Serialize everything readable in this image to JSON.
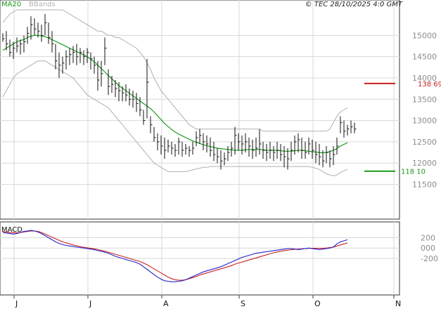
{
  "chart_data": {
    "type": "ohlc",
    "legend": {
      "ma_label": "MA20",
      "bb_label": "BBands",
      "ma_color": "#1a9a1a",
      "bb_color": "#b0b0b0"
    },
    "copyright": "© TEC 28/10/2025 4:0 GMT",
    "price_axis": {
      "ylim": [
        10750,
        15600
      ],
      "ticks": [
        "11500",
        "12000",
        "12500",
        "13000",
        "13500",
        "14000",
        "14500",
        "15000"
      ],
      "tick_values": [
        11500,
        12000,
        12500,
        13000,
        13500,
        14000,
        14500,
        15000
      ]
    },
    "month_labels": [
      "J",
      "J",
      "A",
      "S",
      "O",
      "N"
    ],
    "month_start_index": [
      0,
      21,
      42,
      64,
      85,
      108
    ],
    "resistance": {
      "value": 13869,
      "label": "138 69",
      "color": "#c81e1e"
    },
    "support": {
      "value": 11810,
      "label": "118 10",
      "color": "#1a9a1a"
    },
    "macd": {
      "title": "MACD",
      "ylim": [
        -850,
        450
      ],
      "ticks": [
        "200",
        "000",
        "-200"
      ],
      "tick_values": [
        200,
        0,
        -200
      ],
      "line_color": "#2222cc",
      "signal_color": "#cc2222"
    },
    "bars": [
      [
        15050,
        14850,
        14920
      ],
      [
        15100,
        14650,
        14800
      ],
      [
        14900,
        14500,
        14600
      ],
      [
        14850,
        14450,
        14700
      ],
      [
        14950,
        14600,
        14750
      ],
      [
        14900,
        14550,
        14800
      ],
      [
        15000,
        14600,
        14850
      ],
      [
        15200,
        14800,
        15050
      ],
      [
        15450,
        14900,
        15250
      ],
      [
        15400,
        15000,
        15150
      ],
      [
        15300,
        14950,
        15100
      ],
      [
        15250,
        14850,
        15000
      ],
      [
        15500,
        15000,
        15300
      ],
      [
        15300,
        14800,
        14950
      ],
      [
        15100,
        14600,
        14800
      ],
      [
        14800,
        14200,
        14400
      ],
      [
        14600,
        14000,
        14300
      ],
      [
        14500,
        14100,
        14350
      ],
      [
        14650,
        14200,
        14500
      ],
      [
        14700,
        14300,
        14550
      ],
      [
        14750,
        14350,
        14600
      ],
      [
        14800,
        14300,
        14500
      ],
      [
        14700,
        14350,
        14600
      ],
      [
        14650,
        14300,
        14500
      ],
      [
        14700,
        14350,
        14600
      ],
      [
        14600,
        14200,
        14450
      ],
      [
        14500,
        14100,
        14300
      ],
      [
        14400,
        13700,
        13950
      ],
      [
        14400,
        13800,
        14100
      ],
      [
        14950,
        14300,
        14700
      ],
      [
        14200,
        13600,
        13800
      ],
      [
        14050,
        13650,
        13850
      ],
      [
        13950,
        13550,
        13750
      ],
      [
        13900,
        13450,
        13700
      ],
      [
        13800,
        13450,
        13650
      ],
      [
        13850,
        13450,
        13600
      ],
      [
        13750,
        13350,
        13500
      ],
      [
        13700,
        13300,
        13500
      ],
      [
        13650,
        13200,
        13400
      ],
      [
        13550,
        13100,
        13250
      ],
      [
        13250,
        12900,
        13000
      ],
      [
        14450,
        13050,
        13900
      ],
      [
        13100,
        12700,
        12900
      ],
      [
        12850,
        12500,
        12600
      ],
      [
        12700,
        12300,
        12500
      ],
      [
        12650,
        12200,
        12400
      ],
      [
        12600,
        12100,
        12300
      ],
      [
        12550,
        12250,
        12400
      ],
      [
        12500,
        12200,
        12350
      ],
      [
        12450,
        12150,
        12300
      ],
      [
        12600,
        12200,
        12500
      ],
      [
        12500,
        12150,
        12300
      ],
      [
        12450,
        12200,
        12350
      ],
      [
        12400,
        12150,
        12300
      ],
      [
        12500,
        12200,
        12350
      ],
      [
        12750,
        12400,
        12600
      ],
      [
        12800,
        12450,
        12650
      ],
      [
        12700,
        12300,
        12500
      ],
      [
        12650,
        12250,
        12450
      ],
      [
        12600,
        12150,
        12300
      ],
      [
        12500,
        12050,
        12200
      ],
      [
        12350,
        12000,
        12150
      ],
      [
        12300,
        11850,
        12050
      ],
      [
        12250,
        11950,
        12100
      ],
      [
        12400,
        12050,
        12250
      ],
      [
        12500,
        12150,
        12350
      ],
      [
        12850,
        12200,
        12650
      ],
      [
        12700,
        12300,
        12500
      ],
      [
        12650,
        12200,
        12450
      ],
      [
        12700,
        12250,
        12500
      ],
      [
        12600,
        12150,
        12400
      ],
      [
        12550,
        12100,
        12300
      ],
      [
        12600,
        12150,
        12350
      ],
      [
        12800,
        12200,
        12450
      ],
      [
        12500,
        12100,
        12300
      ],
      [
        12450,
        12050,
        12250
      ],
      [
        12500,
        12100,
        12300
      ],
      [
        12400,
        12050,
        12250
      ],
      [
        12500,
        12100,
        12300
      ],
      [
        12450,
        12050,
        12200
      ],
      [
        12400,
        11900,
        12150
      ],
      [
        12350,
        11850,
        12100
      ],
      [
        12500,
        12050,
        12300
      ],
      [
        12650,
        12200,
        12500
      ],
      [
        12700,
        12250,
        12550
      ],
      [
        12600,
        12100,
        12300
      ],
      [
        12500,
        12100,
        12250
      ],
      [
        12600,
        12200,
        12450
      ],
      [
        12550,
        12100,
        12300
      ],
      [
        12500,
        12000,
        12200
      ],
      [
        12450,
        11950,
        12150
      ],
      [
        12300,
        11900,
        12050
      ],
      [
        12400,
        12000,
        12250
      ],
      [
        12300,
        11900,
        12100
      ],
      [
        12400,
        11950,
        12200
      ],
      [
        12600,
        12200,
        12400
      ],
      [
        13100,
        12700,
        12950
      ],
      [
        13000,
        12600,
        12750
      ],
      [
        12900,
        12650,
        12800
      ],
      [
        13000,
        12700,
        12850
      ],
      [
        12950,
        12700,
        12800
      ]
    ],
    "ma20": [
      14650,
      14700,
      14750,
      14800,
      14850,
      14880,
      14900,
      14950,
      14980,
      15000,
      15000,
      14990,
      14970,
      14940,
      14900,
      14860,
      14820,
      14780,
      14740,
      14700,
      14660,
      14620,
      14580,
      14540,
      14500,
      14440,
      14380,
      14300,
      14220,
      14140,
      14060,
      13980,
      13900,
      13820,
      13760,
      13700,
      13640,
      13580,
      13520,
      13460,
      13400,
      13340,
      13280,
      13200,
      13110,
      13020,
      12930,
      12860,
      12790,
      12730,
      12680,
      12640,
      12600,
      12560,
      12520,
      12490,
      12460,
      12430,
      12410,
      12390,
      12370,
      12350,
      12340,
      12330,
      12320,
      12310,
      12300,
      12300,
      12300,
      12310,
      12320,
      12320,
      12320,
      12320,
      12310,
      12300,
      12300,
      12300,
      12300,
      12290,
      12280,
      12280,
      12280,
      12290,
      12300,
      12300,
      12290,
      12280,
      12270,
      12260,
      12250,
      12240,
      12250,
      12270,
      12300,
      12340,
      12400,
      12440,
      12480
    ],
    "bb_upper": [
      15300,
      15400,
      15500,
      15550,
      15600,
      15600,
      15600,
      15600,
      15600,
      15600,
      15600,
      15600,
      15600,
      15600,
      15600,
      15600,
      15600,
      15600,
      15550,
      15500,
      15450,
      15400,
      15350,
      15300,
      15250,
      15200,
      15150,
      15100,
      15100,
      15050,
      15000,
      15000,
      14950,
      14950,
      14900,
      14850,
      14800,
      14750,
      14700,
      14600,
      14500,
      14350,
      14200,
      14000,
      13850,
      13700,
      13600,
      13500,
      13400,
      13300,
      13200,
      13100,
      13000,
      12900,
      12850,
      12800,
      12800,
      12800,
      12800,
      12800,
      12800,
      12800,
      12800,
      12800,
      12800,
      12800,
      12800,
      12800,
      12800,
      12800,
      12800,
      12800,
      12800,
      12800,
      12750,
      12750,
      12750,
      12750,
      12750,
      12750,
      12750,
      12750,
      12750,
      12750,
      12750,
      12750,
      12750,
      12750,
      12750,
      12750,
      12750,
      12750,
      12750,
      12800,
      12950,
      13100,
      13200,
      13250,
      13300
    ],
    "bb_lower": [
      13550,
      13700,
      13850,
      14000,
      14100,
      14150,
      14200,
      14250,
      14300,
      14350,
      14400,
      14400,
      14400,
      14350,
      14300,
      14250,
      14200,
      14150,
      14100,
      14050,
      14000,
      13900,
      13800,
      13700,
      13600,
      13550,
      13500,
      13450,
      13400,
      13350,
      13300,
      13200,
      13100,
      13000,
      12900,
      12800,
      12700,
      12600,
      12500,
      12400,
      12300,
      12200,
      12100,
      12000,
      11950,
      11900,
      11850,
      11800,
      11800,
      11800,
      11800,
      11800,
      11800,
      11820,
      11840,
      11860,
      11880,
      11900,
      11900,
      11920,
      11920,
      11920,
      11920,
      11920,
      11920,
      11920,
      11920,
      11920,
      11920,
      11920,
      11920,
      11920,
      11920,
      11920,
      11920,
      11920,
      11920,
      11920,
      11920,
      11920,
      11920,
      11920,
      11920,
      11920,
      11920,
      11920,
      11920,
      11920,
      11900,
      11880,
      11850,
      11800,
      11750,
      11720,
      11700,
      11720,
      11780,
      11820,
      11850
    ],
    "macd_line": [
      300,
      290,
      280,
      270,
      280,
      300,
      320,
      330,
      340,
      330,
      310,
      280,
      240,
      200,
      160,
      120,
      90,
      70,
      50,
      40,
      30,
      20,
      10,
      0,
      -10,
      -20,
      -30,
      -50,
      -60,
      -80,
      -100,
      -130,
      -160,
      -180,
      -200,
      -220,
      -240,
      -260,
      -280,
      -310,
      -360,
      -410,
      -460,
      -510,
      -560,
      -600,
      -630,
      -640,
      -650,
      -650,
      -640,
      -630,
      -610,
      -580,
      -550,
      -520,
      -490,
      -460,
      -440,
      -420,
      -400,
      -380,
      -360,
      -330,
      -300,
      -270,
      -240,
      -210,
      -180,
      -160,
      -140,
      -120,
      -100,
      -90,
      -80,
      -70,
      -60,
      -50,
      -40,
      -30,
      -20,
      -10,
      -10,
      -20,
      -30,
      -20,
      -10,
      0,
      -10,
      -20,
      -30,
      -20,
      -10,
      0,
      20,
      80,
      120,
      140,
      160
    ],
    "signal_line": [
      320,
      310,
      300,
      295,
      295,
      300,
      310,
      320,
      330,
      330,
      320,
      300,
      270,
      240,
      210,
      180,
      150,
      120,
      100,
      80,
      60,
      45,
      30,
      15,
      5,
      -5,
      -15,
      -30,
      -45,
      -60,
      -80,
      -100,
      -120,
      -140,
      -160,
      -180,
      -200,
      -220,
      -240,
      -260,
      -290,
      -320,
      -360,
      -400,
      -440,
      -480,
      -520,
      -560,
      -590,
      -610,
      -620,
      -620,
      -610,
      -590,
      -570,
      -550,
      -520,
      -500,
      -480,
      -460,
      -440,
      -420,
      -400,
      -380,
      -360,
      -340,
      -310,
      -290,
      -270,
      -250,
      -230,
      -210,
      -190,
      -170,
      -150,
      -130,
      -110,
      -90,
      -75,
      -60,
      -50,
      -40,
      -30,
      -25,
      -20,
      -15,
      -10,
      -5,
      -5,
      -5,
      -5,
      -5,
      0,
      10,
      20,
      40,
      60,
      80,
      100
    ]
  }
}
